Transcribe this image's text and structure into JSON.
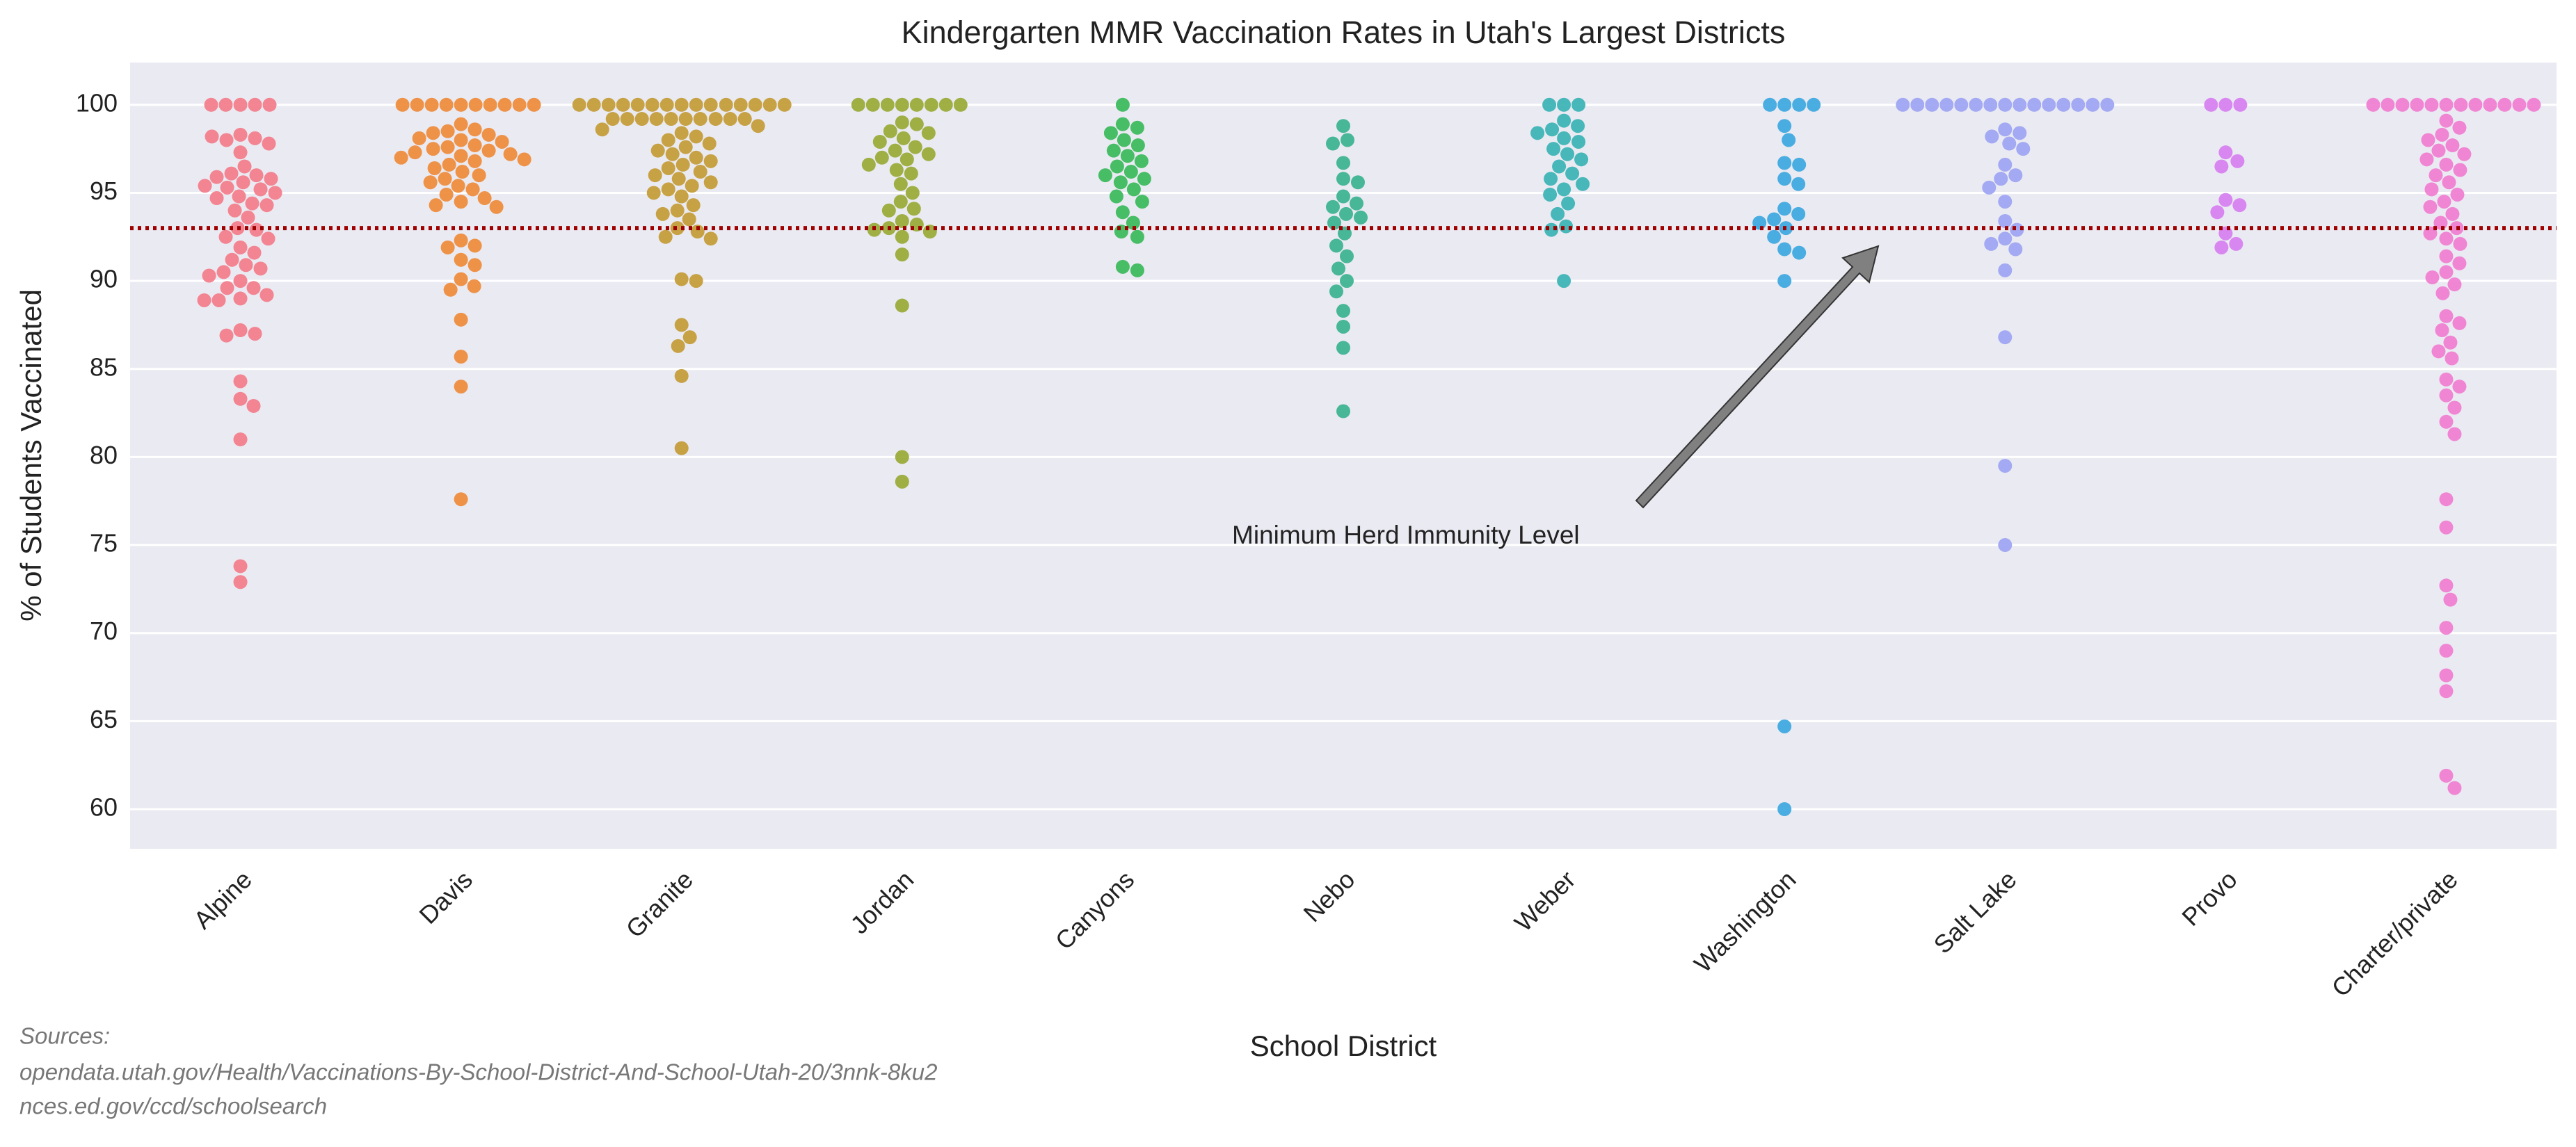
{
  "chart_data": {
    "type": "swarm",
    "title": "Kindergarten MMR Vaccination Rates in Utah's Largest Districts",
    "x_label": "School District",
    "y_label": "% of Students Vaccinated",
    "categories": [
      "Alpine",
      "Davis",
      "Granite",
      "Jordan",
      "Canyons",
      "Nebo",
      "Weber",
      "Washington",
      "Salt Lake",
      "Provo",
      "Charter/private"
    ],
    "colors": [
      "#f37b89",
      "#ee8a3a",
      "#c39b36",
      "#98a935",
      "#38b85a",
      "#38b28f",
      "#38b2b4",
      "#3ca7e0",
      "#9ca3f2",
      "#d67ef0",
      "#f07dd0"
    ],
    "values": [
      [
        100,
        100,
        100,
        100,
        100,
        98.3,
        98.1,
        98.0,
        98.2,
        97.8,
        97.3,
        96.5,
        96.1,
        96.0,
        95.9,
        95.8,
        95.6,
        95.4,
        95.3,
        95.2,
        95.0,
        94.8,
        94.7,
        94.4,
        94.3,
        94.0,
        93.6,
        93.0,
        92.9,
        92.5,
        92.4,
        91.9,
        91.6,
        91.2,
        90.9,
        90.7,
        90.5,
        90.3,
        90.0,
        89.6,
        89.6,
        89.2,
        89.0,
        88.9,
        88.9,
        87.2,
        87.0,
        86.9,
        84.3,
        83.3,
        82.9,
        81.0,
        73.8,
        72.9
      ],
      [
        100,
        100,
        100,
        100,
        100,
        100,
        100,
        100,
        100,
        100,
        98.9,
        98.6,
        98.5,
        98.4,
        98.3,
        98.1,
        98.0,
        97.9,
        97.7,
        97.6,
        97.5,
        97.4,
        97.3,
        97.2,
        97.1,
        97.0,
        96.9,
        96.8,
        96.6,
        96.4,
        96.2,
        96.0,
        95.8,
        95.6,
        95.4,
        95.2,
        94.9,
        94.7,
        94.5,
        94.3,
        94.2,
        92.3,
        92.0,
        91.9,
        91.2,
        90.9,
        90.1,
        89.7,
        89.5,
        87.8,
        85.7,
        84.0,
        77.6
      ],
      [
        100,
        100,
        100,
        100,
        100,
        100,
        100,
        100,
        100,
        100,
        100,
        100,
        100,
        100,
        100,
        99.2,
        99.2,
        99.2,
        99.2,
        99.2,
        99.2,
        99.2,
        99.2,
        99.2,
        99.2,
        98.8,
        98.6,
        98.4,
        98.2,
        98.0,
        97.8,
        97.6,
        97.4,
        97.2,
        97.0,
        96.8,
        96.6,
        96.4,
        96.2,
        96.0,
        95.8,
        95.6,
        95.4,
        95.2,
        95.0,
        94.8,
        94.3,
        94.0,
        93.8,
        93.5,
        93.0,
        92.8,
        92.5,
        92.4,
        90.1,
        90.0,
        87.5,
        86.8,
        86.3,
        84.6,
        80.5
      ],
      [
        100,
        100,
        100,
        100,
        100,
        100,
        100,
        100,
        99.0,
        98.9,
        98.5,
        98.4,
        98.1,
        97.9,
        97.6,
        97.4,
        97.2,
        97.0,
        96.9,
        96.6,
        96.3,
        96.1,
        95.5,
        95.0,
        94.5,
        94.1,
        94.0,
        93.4,
        93.2,
        93.0,
        92.9,
        92.8,
        92.5,
        91.5,
        88.6,
        80.0,
        78.6
      ],
      [
        100,
        98.9,
        98.7,
        98.4,
        98.0,
        97.7,
        97.4,
        97.1,
        96.8,
        96.5,
        96.2,
        96.0,
        95.8,
        95.6,
        95.2,
        94.8,
        94.5,
        93.9,
        93.3,
        92.8,
        92.5,
        90.8,
        90.6
      ],
      [
        98.8,
        98.0,
        97.8,
        96.7,
        95.8,
        95.6,
        94.8,
        94.4,
        94.2,
        93.8,
        93.6,
        93.3,
        92.7,
        92.0,
        91.4,
        90.7,
        90.0,
        89.4,
        88.3,
        87.4,
        86.2,
        82.6
      ],
      [
        100,
        100,
        100,
        99.1,
        98.8,
        98.6,
        98.4,
        98.1,
        97.9,
        97.5,
        97.2,
        96.9,
        96.5,
        96.1,
        95.8,
        95.5,
        95.2,
        94.9,
        94.4,
        93.8,
        93.1,
        92.9,
        90.0
      ],
      [
        100,
        100,
        100,
        100,
        98.8,
        98.0,
        96.7,
        96.6,
        95.8,
        95.5,
        94.1,
        93.8,
        93.5,
        93.3,
        93.0,
        92.5,
        91.8,
        91.6,
        90.0,
        64.7,
        60.0
      ],
      [
        100,
        100,
        100,
        100,
        100,
        100,
        100,
        100,
        100,
        100,
        100,
        100,
        100,
        100,
        100,
        98.6,
        98.4,
        98.2,
        97.8,
        97.5,
        96.6,
        96.0,
        95.8,
        95.3,
        94.5,
        93.4,
        92.9,
        92.4,
        92.1,
        91.8,
        90.6,
        86.8,
        79.5,
        75.0
      ],
      [
        100,
        100,
        100,
        97.3,
        96.8,
        96.5,
        94.6,
        94.3,
        93.9,
        92.7,
        92.1,
        91.9
      ],
      [
        100,
        100,
        100,
        100,
        100,
        100,
        100,
        100,
        100,
        100,
        100,
        100,
        99.1,
        98.7,
        98.3,
        98.0,
        97.7,
        97.4,
        97.2,
        96.9,
        96.6,
        96.3,
        96.0,
        95.6,
        95.2,
        94.9,
        94.5,
        94.2,
        93.8,
        93.3,
        93.0,
        92.7,
        92.4,
        92.1,
        91.4,
        91.0,
        90.5,
        90.2,
        89.8,
        89.3,
        88.0,
        87.6,
        87.2,
        86.5,
        86.0,
        85.6,
        84.4,
        84.0,
        83.5,
        82.8,
        82.0,
        81.3,
        77.6,
        76.0,
        72.7,
        71.9,
        70.3,
        69.0,
        67.6,
        66.7,
        61.9,
        61.2
      ]
    ],
    "ylim": [
      57.75,
      102.4
    ],
    "yticks": [
      60,
      65,
      70,
      75,
      80,
      85,
      90,
      95,
      100
    ],
    "grid": true,
    "hline": {
      "value": 93,
      "color": "#a00000"
    },
    "annotation": "Minimum Herd Immunity Level",
    "sources": [
      "Sources:",
      "opendata.utah.gov/Health/Vaccinations-By-School-District-And-School-Utah-20/3nnk-8ku2",
      "nces.ed.gov/ccd/schoolsearch"
    ]
  }
}
